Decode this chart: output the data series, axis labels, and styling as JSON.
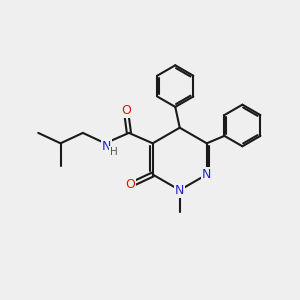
{
  "background_color": "#efefef",
  "line_color": "#1a1a1a",
  "bond_width": 1.5,
  "N_color": "#2222cc",
  "O_color": "#cc2200",
  "H_color": "#555555",
  "font_size_atom": 9.0,
  "fig_size": [
    3.0,
    3.0
  ],
  "dpi": 100,
  "xlim": [
    0,
    10
  ],
  "ylim": [
    0,
    10
  ]
}
